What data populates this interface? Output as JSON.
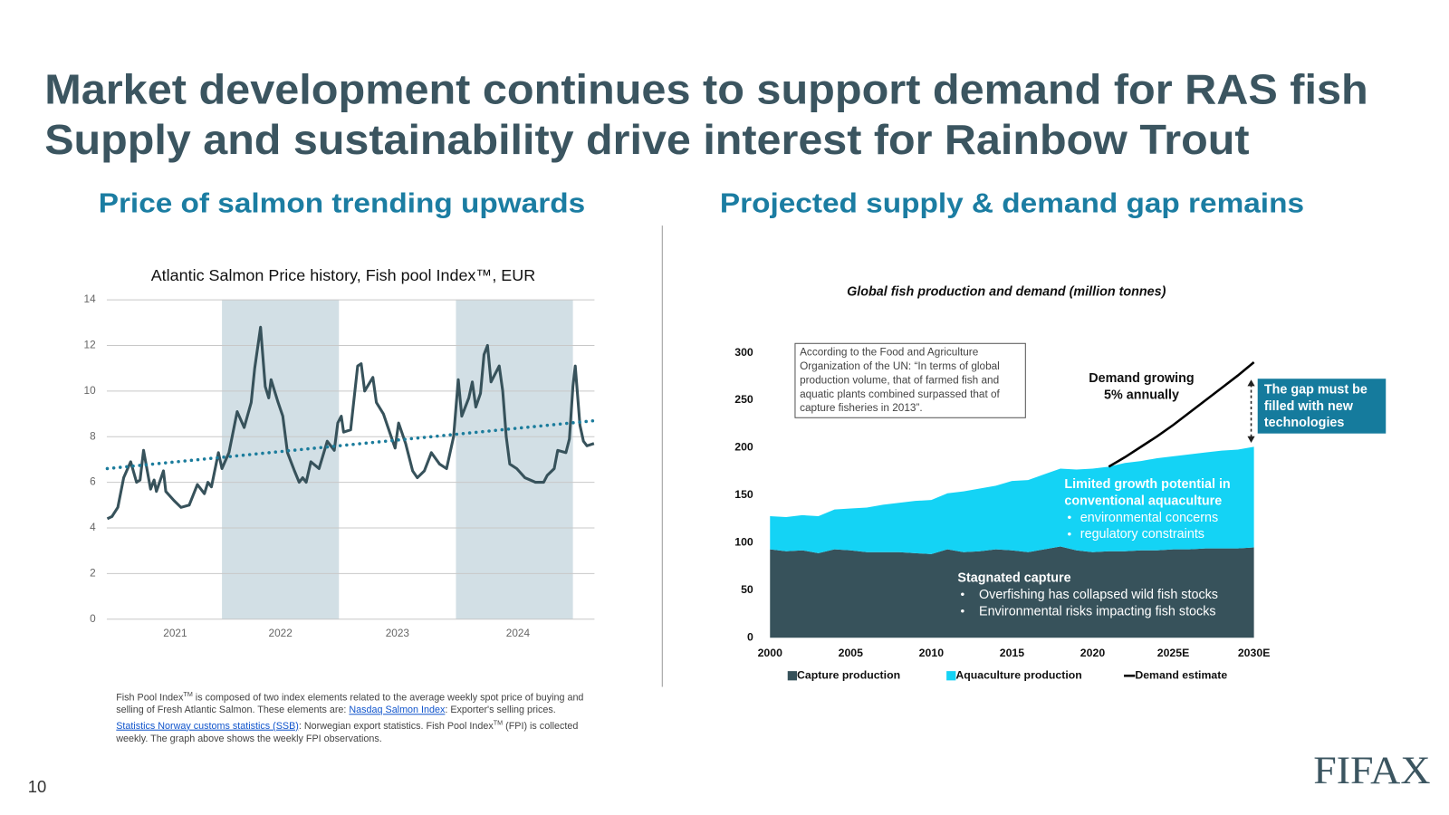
{
  "slide": {
    "title_lines": [
      "Market development continues to support demand for RAS fish",
      "Supply and sustainability drive interest for Rainbow Trout"
    ],
    "page_number": "10",
    "logo": "FIFAX"
  },
  "panels": [
    {
      "heading": "Price of salmon trending upwards"
    },
    {
      "heading": "Projected supply & demand gap remains"
    }
  ],
  "footnote": [
    {
      "text": "Fish Pool Index"
    },
    {
      "text": "TM",
      "sup": true
    },
    {
      "text": " is composed of two index elements related to the average weekly spot price of buying and selling of Fresh Atlantic Salmon. These elements are: "
    },
    {
      "text": "Nasdaq Salmon Index",
      "link": true
    },
    {
      "text": ": Exporter's selling prices. "
    },
    {
      "text": "Statistics Norway customs statistics (SSB)",
      "link": true
    },
    {
      "text": ": Norwegian export statistics. Fish Pool Index"
    },
    {
      "text": "TM",
      "sup": true
    },
    {
      "text": " (FPI) is collected weekly. The graph above shows the weekly FPI observations."
    }
  ],
  "chart_data": [
    {
      "type": "line",
      "title": "Atlantic Salmon Price history, Fish pool Index™, EUR",
      "x": [
        2021.02,
        2021.06,
        2021.11,
        2021.16,
        2021.22,
        2021.27,
        2021.3,
        2021.33,
        2021.39,
        2021.42,
        2021.44,
        2021.5,
        2021.52,
        2021.59,
        2021.65,
        2021.72,
        2021.79,
        2021.85,
        2021.88,
        2021.91,
        2021.97,
        2022.0,
        2022.06,
        2022.13,
        2022.19,
        2022.25,
        2022.28,
        2022.33,
        2022.37,
        2022.4,
        2022.42,
        2022.48,
        2022.52,
        2022.56,
        2022.62,
        2022.66,
        2022.69,
        2022.72,
        2022.76,
        2022.83,
        2022.9,
        2022.96,
        2022.99,
        2023.02,
        2023.04,
        2023.1,
        2023.16,
        2023.19,
        2023.22,
        2023.29,
        2023.32,
        2023.38,
        2023.44,
        2023.48,
        2023.51,
        2023.57,
        2023.63,
        2023.67,
        2023.73,
        2023.79,
        2023.86,
        2023.92,
        2023.98,
        2024.02,
        2024.05,
        2024.11,
        2024.14,
        2024.17,
        2024.21,
        2024.24,
        2024.27,
        2024.3,
        2024.37,
        2024.4,
        2024.43,
        2024.46,
        2024.52,
        2024.59,
        2024.68,
        2024.75,
        2024.78,
        2024.84,
        2024.87,
        2024.94,
        2024.97,
        2025.0,
        2025.02,
        2025.06,
        2025.09,
        2025.12,
        2025.18
      ],
      "series": [
        {
          "color": "#37525b",
          "values": [
            4.4,
            4.5,
            4.9,
            6.2,
            6.9,
            6.0,
            6.1,
            7.4,
            5.7,
            6.1,
            5.6,
            6.5,
            5.6,
            5.2,
            4.9,
            5.0,
            5.9,
            5.5,
            6.0,
            5.8,
            7.3,
            6.6,
            7.3,
            9.1,
            8.4,
            9.5,
            11.0,
            12.8,
            10.2,
            9.7,
            10.5,
            9.5,
            8.9,
            7.3,
            6.5,
            6.0,
            6.2,
            6.0,
            6.9,
            6.6,
            7.8,
            7.4,
            8.6,
            8.9,
            8.2,
            8.3,
            11.1,
            11.2,
            10.0,
            10.6,
            9.5,
            9.0,
            8.1,
            7.5,
            8.6,
            7.7,
            6.5,
            6.2,
            6.5,
            7.3,
            6.8,
            6.6,
            8.0,
            10.5,
            8.9,
            9.7,
            10.4,
            9.3,
            9.9,
            11.6,
            12.0,
            10.4,
            11.1,
            10.0,
            8.0,
            6.8,
            6.6,
            6.2,
            6.0,
            6.0,
            6.3,
            6.6,
            7.4,
            7.3,
            7.9,
            10.2,
            11.1,
            8.5,
            7.8,
            7.6,
            7.7
          ]
        }
      ],
      "trend": {
        "color": "#1b7c9c",
        "style": "dotted",
        "x": [
          2021.02,
          2025.18
        ],
        "values": [
          6.6,
          8.7
        ]
      },
      "shaded_spans": [
        [
          2022,
          2023
        ],
        [
          2024,
          2025
        ]
      ],
      "shade_color": "#d2dfe5",
      "xlim": [
        2021.0,
        2025.2
      ],
      "xticks": [
        {
          "value": 2021.6,
          "label": "2021"
        },
        {
          "value": 2022.5,
          "label": "2022"
        },
        {
          "value": 2023.5,
          "label": "2023"
        },
        {
          "value": 2024.53,
          "label": "2024"
        }
      ],
      "ylim": [
        0,
        14
      ],
      "yticks": [
        0,
        2,
        4,
        6,
        8,
        10,
        12,
        14
      ],
      "grid": true
    },
    {
      "type": "area",
      "title": "Global fish production and demand (million tonnes)",
      "x": [
        2000,
        2001,
        2002,
        2003,
        2004,
        2005,
        2006,
        2007,
        2008,
        2009,
        2010,
        2011,
        2012,
        2013,
        2014,
        2015,
        2016,
        2017,
        2018,
        2019,
        2020,
        2021,
        2022,
        2023,
        2024,
        2025,
        2026,
        2027,
        2028,
        2029,
        2030
      ],
      "series": [
        {
          "name": "Capture production",
          "color": "#37525b",
          "values": [
            93,
            91,
            92,
            89,
            93,
            92,
            90,
            90,
            90,
            89,
            88,
            93,
            90,
            91,
            93,
            92,
            90,
            93,
            96,
            92,
            90,
            91,
            91,
            92,
            92,
            93,
            93,
            94,
            94,
            94,
            95
          ]
        },
        {
          "name": "Aquaculture production",
          "color": "#14d3f5",
          "stacked": true,
          "values": [
            35,
            36,
            37,
            39,
            42,
            44,
            47,
            50,
            52,
            55,
            57,
            59,
            64,
            66,
            67,
            73,
            76,
            79,
            82,
            85,
            88,
            89,
            93,
            94,
            97,
            98,
            100,
            101,
            103,
            104,
            106
          ]
        },
        {
          "name": "Demand estimate",
          "color": "#000000",
          "style": "line",
          "values": [
            null,
            null,
            null,
            null,
            null,
            null,
            null,
            null,
            null,
            null,
            null,
            null,
            null,
            null,
            null,
            null,
            null,
            null,
            null,
            null,
            null,
            180,
            190,
            201,
            212,
            224,
            237,
            250,
            263,
            276,
            290
          ]
        }
      ],
      "xlim": [
        2000,
        2030
      ],
      "xticks": [
        2000,
        2005,
        2010,
        2015,
        2020,
        {
          "value": 2025,
          "label": "2025E"
        },
        {
          "value": 2030,
          "label": "2030E"
        }
      ],
      "ylim": [
        0,
        300
      ],
      "yticks": [
        0,
        50,
        100,
        150,
        200,
        250,
        300
      ],
      "grid": false,
      "legend": "bottom",
      "annotations": {
        "note": {
          "lines": [
            "According to the Food and Agriculture",
            "Organization of the UN: “In terms of global",
            "production volume, that of farmed fish and",
            "aquatic plants combined surpassed that of",
            "capture fisheries in 2013”."
          ]
        },
        "demand_label": {
          "lines": [
            "Demand growing",
            "5% annually"
          ]
        },
        "gap_label": {
          "lines": [
            "The gap must be",
            "filled with new",
            "technologies"
          ]
        },
        "aqua_label": {
          "lines": [
            "Limited growth potential in",
            "conventional aquaculture"
          ],
          "bullets": [
            "environmental concerns",
            "regulatory constraints"
          ]
        },
        "capture_label": {
          "lines": [
            "Stagnated capture"
          ],
          "bullets": [
            "Overfishing has collapsed wild fish stocks",
            "Environmental risks impacting fish stocks"
          ]
        }
      }
    }
  ]
}
